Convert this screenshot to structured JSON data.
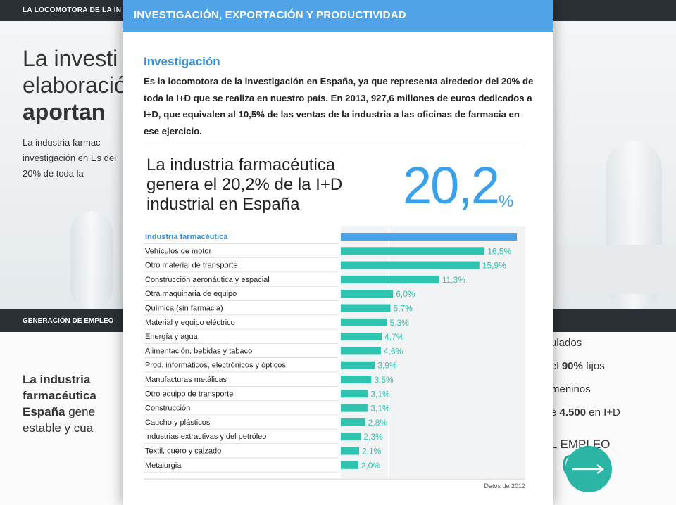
{
  "background": {
    "top_strip": "LA LOCOMOTORA DE LA IN",
    "title_line1": "La investi",
    "title_line2": "elaboració",
    "title_line3": "aportan",
    "paragraph": "La industria farmac investigación en Es del 20% de toda la",
    "section_strip": "GENERACIÓN DE EMPLEO",
    "left_text_bold1": "La industria farmacéutica",
    "left_text_bold2": "España",
    "left_text_rest1": " gene",
    "left_text_rest2": "estable y cua",
    "right_list": [
      {
        "text": "ulados",
        "bold": ""
      },
      {
        "text": "el ",
        "bold": "90%",
        "tail": " fijos"
      },
      {
        "text": "meninos",
        "bold": ""
      },
      {
        "text": "e ",
        "bold": "4.500",
        "tail": " en I+D"
      }
    ],
    "empleo": "L EMPLEO",
    "big_number_partial": "0",
    "next_icon": "arrow-right-icon"
  },
  "modal": {
    "header": "INVESTIGACIÓN, EXPORTACIÓN Y PRODUCTIVIDAD",
    "section_title": "Investigación",
    "section_body": "Es la locomotora de la investigación en España, ya que representa alrededor del 20% de toda  la I+D que se realiza en nuestro país. En 2013, 927,6 millones de euros dedicados a I+D, que equivalen al 10,5% de las ventas de la industria a las oficinas de farmacia en ese ejercicio.",
    "infographic": {
      "headline": "La industria farmacéutica genera el 20,2% de la I+D industrial en España",
      "big_number": "20,2",
      "big_number_unit": "%",
      "footnote": "Datos de 2012"
    }
  },
  "colors": {
    "header_blue": "#4fa3e6",
    "highlight_bar": "#4aa3e8",
    "teal_bar": "#2ec4b0",
    "value_label": "#2ec4b0"
  },
  "chart_data": {
    "type": "bar",
    "orientation": "horizontal",
    "categories": [
      "Industria farmacéutica",
      "Vehículos de motor",
      "Otro material de transporte",
      "Construcción aeronáutica y espacial",
      "Otra maquinaria de equipo",
      "Química (sin farmacia)",
      "Material y equipo eléctrico",
      "Energía y agua",
      "Alimentación, bebidas y tabaco",
      "Prod. informáticos, electrónicos y ópticos",
      "Manufacturas metálicas",
      "Otro equipo de transporte",
      "Construcción",
      "Caucho y plásticos",
      "Industrias extractivas y del petróleo",
      "Textil, cuero y calzado",
      "Metalurgia"
    ],
    "values": [
      20.2,
      16.5,
      15.9,
      11.3,
      6.0,
      5.7,
      5.3,
      4.7,
      4.6,
      3.9,
      3.5,
      3.1,
      3.1,
      2.8,
      2.3,
      2.1,
      2.0
    ],
    "value_labels": [
      "",
      "16,5%",
      "15,9%",
      "11,3%",
      "6,0%",
      "5,7%",
      "5,3%",
      "4,7%",
      "4,6%",
      "3,9%",
      "3,5%",
      "3,1%",
      "3,1%",
      "2,8%",
      "2,3%",
      "2,1%",
      "2,0%"
    ],
    "highlight_index": 0,
    "xlim": [
      0,
      20.2
    ]
  }
}
